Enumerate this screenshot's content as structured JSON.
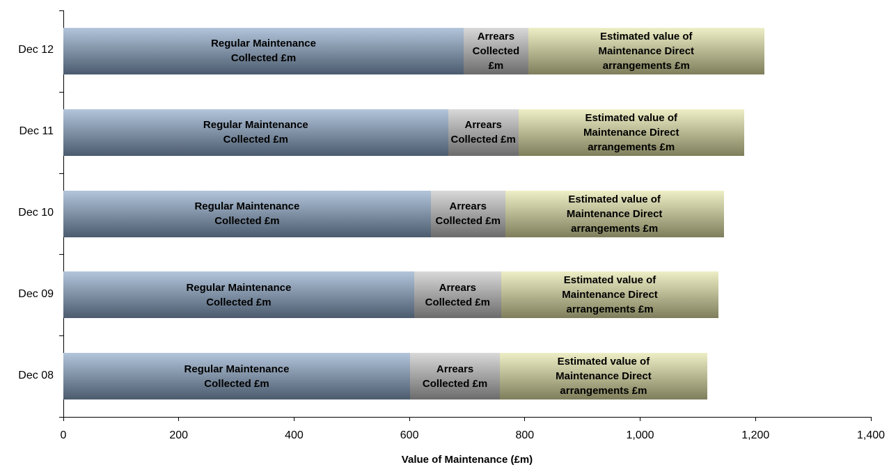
{
  "chart_data": {
    "type": "stacked-bar-horizontal",
    "categories": [
      "Dec 12",
      "Dec 11",
      "Dec 10",
      "Dec 09",
      "Dec 08"
    ],
    "series": [
      {
        "name": "Regular Maintenance Collected £m",
        "color": "#8aa6c8",
        "values": [
          694,
          667,
          637,
          608,
          601
        ]
      },
      {
        "name": "Arrears Collected £m",
        "color": "#c4c4c4",
        "values": [
          112,
          122,
          129,
          151,
          156
        ]
      },
      {
        "name": "Estimated value of Maintenance Direct arrangements £m",
        "color": "#e6e6a8",
        "values": [
          409,
          391,
          379,
          377,
          359
        ]
      }
    ],
    "xlabel": "Value of Maintenance (£m)",
    "xlim": [
      0,
      1400
    ],
    "xticks": [
      0,
      200,
      400,
      600,
      800,
      {
        "value": 1000,
        "label": "1,000"
      },
      {
        "value": 1200,
        "label": "1,200"
      },
      {
        "value": 1400,
        "label": "1,400"
      }
    ]
  }
}
